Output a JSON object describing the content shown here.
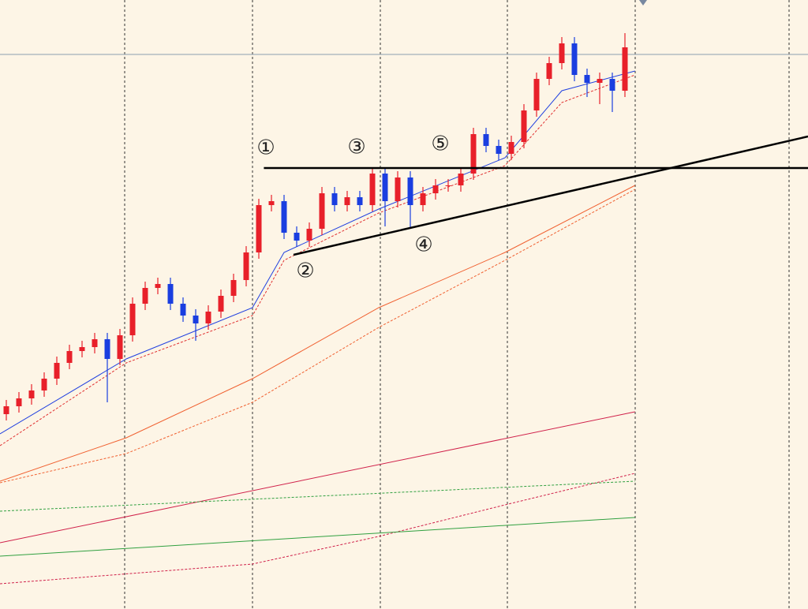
{
  "chart_data": {
    "type": "candlestick",
    "xlim": [
      -0.5,
      63.5
    ],
    "ylim": [
      0,
      772
    ],
    "grid": true,
    "up_color": "#e8202a",
    "down_color": "#1a3ee0",
    "open": [
      247,
      257,
      267,
      277,
      292,
      312,
      327,
      332,
      342,
      317,
      347,
      387,
      407,
      412,
      387,
      372,
      362,
      377,
      397,
      417,
      452,
      512,
      517,
      477,
      467,
      482,
      527,
      512,
      522,
      512,
      552,
      517,
      547,
      512,
      527,
      537,
      537,
      552,
      602,
      587,
      577,
      592,
      632,
      672,
      692,
      717,
      677,
      667,
      672,
      657
    ],
    "high": [
      265,
      275,
      285,
      300,
      320,
      335,
      340,
      350,
      350,
      355,
      395,
      415,
      420,
      420,
      395,
      380,
      385,
      405,
      425,
      460,
      520,
      525,
      525,
      485,
      490,
      535,
      535,
      530,
      530,
      560,
      560,
      555,
      555,
      535,
      545,
      545,
      560,
      610,
      610,
      595,
      600,
      640,
      680,
      700,
      725,
      725,
      685,
      680,
      680,
      730
    ],
    "low": [
      239,
      249,
      259,
      269,
      284,
      304,
      319,
      324,
      262,
      309,
      339,
      379,
      399,
      379,
      364,
      340,
      354,
      369,
      389,
      409,
      444,
      504,
      469,
      459,
      459,
      474,
      504,
      504,
      504,
      504,
      485,
      509,
      482,
      504,
      519,
      529,
      529,
      544,
      579,
      569,
      569,
      584,
      624,
      664,
      684,
      669,
      649,
      640,
      630,
      649
    ],
    "close": [
      257,
      267,
      277,
      292,
      312,
      327,
      332,
      342,
      317,
      347,
      387,
      407,
      412,
      387,
      372,
      362,
      377,
      397,
      417,
      452,
      512,
      517,
      477,
      467,
      482,
      527,
      512,
      522,
      512,
      552,
      517,
      547,
      512,
      527,
      537,
      537,
      552,
      602,
      587,
      577,
      592,
      632,
      672,
      692,
      717,
      677,
      667,
      672,
      657,
      712
    ],
    "lines": [
      {
        "color": "#2040e0",
        "dash": false,
        "x": [
          -0.5,
          9.5,
          19.5,
          22,
          29.5,
          39.5,
          44,
          49.8
        ],
        "values": [
          222,
          317,
          382,
          452,
          507,
          572,
          657,
          682
        ]
      },
      {
        "color": "#e03030",
        "dash": true,
        "x": [
          -0.5,
          9.5,
          19.5,
          22,
          29.5,
          39.5,
          44,
          49.8
        ],
        "values": [
          207,
          312,
          372,
          442,
          502,
          562,
          642,
          677
        ]
      },
      {
        "color": "#f06030",
        "dash": false,
        "x": [
          -0.5,
          9.5,
          19.5,
          29.5,
          39.5,
          49.8
        ],
        "values": [
          162,
          217,
          292,
          382,
          452,
          537
        ]
      },
      {
        "color": "#f06030",
        "dash": true,
        "x": [
          -0.5,
          9.5,
          19.5,
          29.5,
          39.5,
          49.8
        ],
        "values": [
          160,
          197,
          262,
          357,
          442,
          532
        ]
      },
      {
        "color": "#d0204a",
        "dash": false,
        "x": [
          -0.5,
          49.8
        ],
        "values": [
          84,
          250
        ]
      },
      {
        "color": "#d0204a",
        "dash": true,
        "x": [
          -0.5,
          19.5,
          29.5,
          39.5,
          49.8
        ],
        "values": [
          32,
          57,
          92,
          132,
          172
        ]
      },
      {
        "color": "#30a040",
        "dash": false,
        "x": [
          -0.5,
          49.8
        ],
        "values": [
          67,
          116
        ]
      },
      {
        "color": "#30a040",
        "dash": true,
        "x": [
          -0.5,
          49.8
        ],
        "values": [
          124,
          162
        ]
      }
    ],
    "trendlines": [
      {
        "x": [
          20.4,
          63.5
        ],
        "values": [
          559,
          559
        ]
      },
      {
        "x": [
          22.75,
          63.5
        ],
        "values": [
          449,
          599
        ]
      }
    ],
    "annotations": [
      "①",
      "②",
      "③",
      "④",
      "⑤"
    ]
  }
}
